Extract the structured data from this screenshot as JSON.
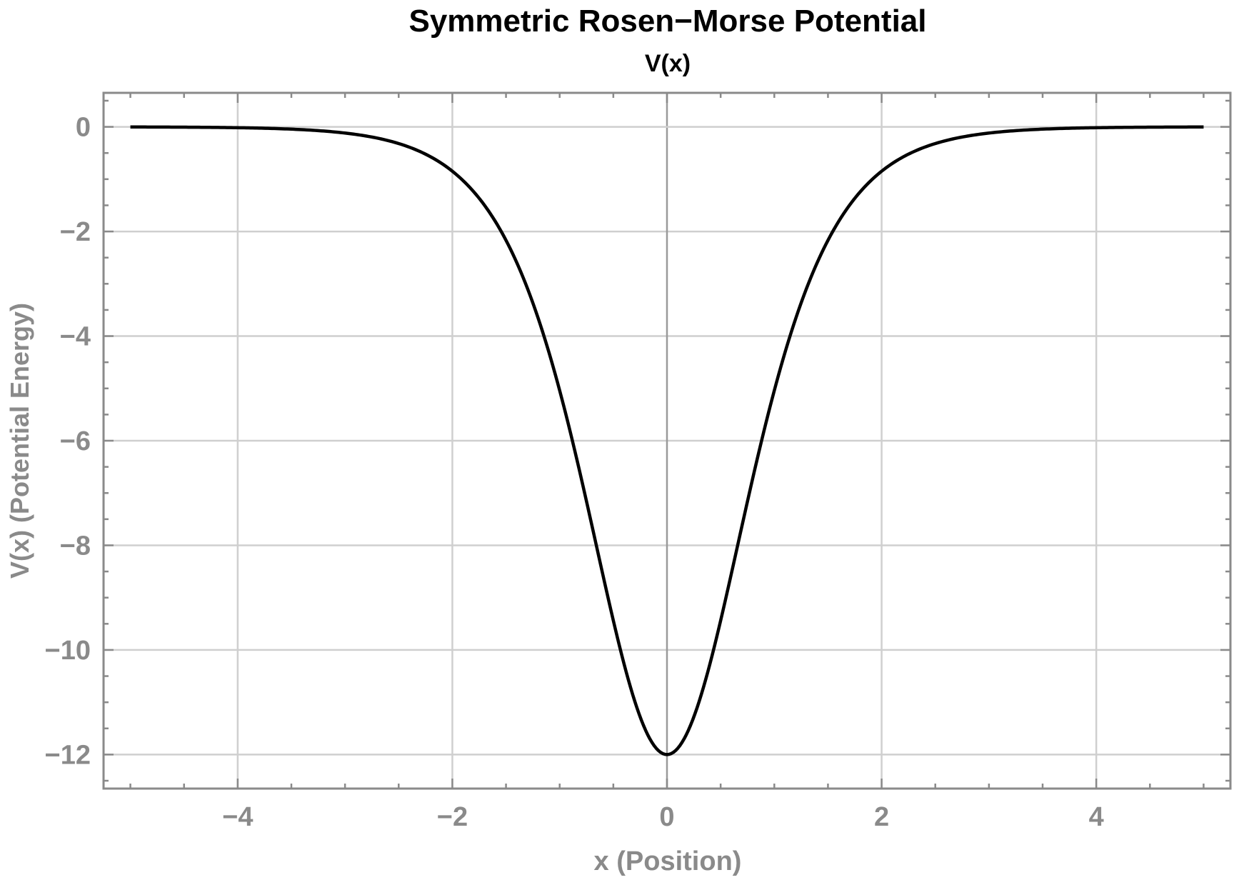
{
  "colors": {
    "background": "#ffffff",
    "frame": "#8a8a8a",
    "grid": "#cfcfcf",
    "axis_zero": "#9a9a9a",
    "curve": "#000000",
    "title": "#000000",
    "label": "#8a8a8a"
  },
  "chart_data": {
    "type": "line",
    "title": "Symmetric Rosen−Morse Potential",
    "subtitle": "V(x)",
    "xlabel": "x (Position)",
    "ylabel": "V(x) (Potential Energy)",
    "xlim": [
      -5.25,
      5.25
    ],
    "ylim": [
      -12.65,
      0.65
    ],
    "x_major_ticks": [
      -4,
      -2,
      0,
      2,
      4
    ],
    "x_tick_labels": [
      "−4",
      "−2",
      "0",
      "2",
      "4"
    ],
    "x_minor_step": 0.5,
    "y_major_ticks": [
      0,
      -2,
      -4,
      -6,
      -8,
      -10,
      -12
    ],
    "y_tick_labels": [
      "0",
      "−2",
      "−4",
      "−6",
      "−8",
      "−10",
      "−12"
    ],
    "y_minor_step": 0.5,
    "grid": true,
    "series": [
      {
        "name": "V(x)",
        "formula": "-12 sech^2(x)",
        "x_range": [
          -5,
          5
        ],
        "x": [
          -5,
          -4,
          -3,
          -2.5,
          -2,
          -1.5,
          -1,
          -0.75,
          -0.5,
          -0.25,
          0,
          0.25,
          0.5,
          0.75,
          1,
          1.5,
          2,
          2.5,
          3,
          4,
          5
        ],
        "y": [
          -0.002,
          -0.016,
          -0.118,
          -0.319,
          -0.848,
          -2.16,
          -5.041,
          -7.133,
          -9.451,
          -11.282,
          -12.0,
          -11.282,
          -9.451,
          -7.133,
          -5.041,
          -2.16,
          -0.848,
          -0.319,
          -0.118,
          -0.016,
          -0.002
        ]
      }
    ]
  }
}
